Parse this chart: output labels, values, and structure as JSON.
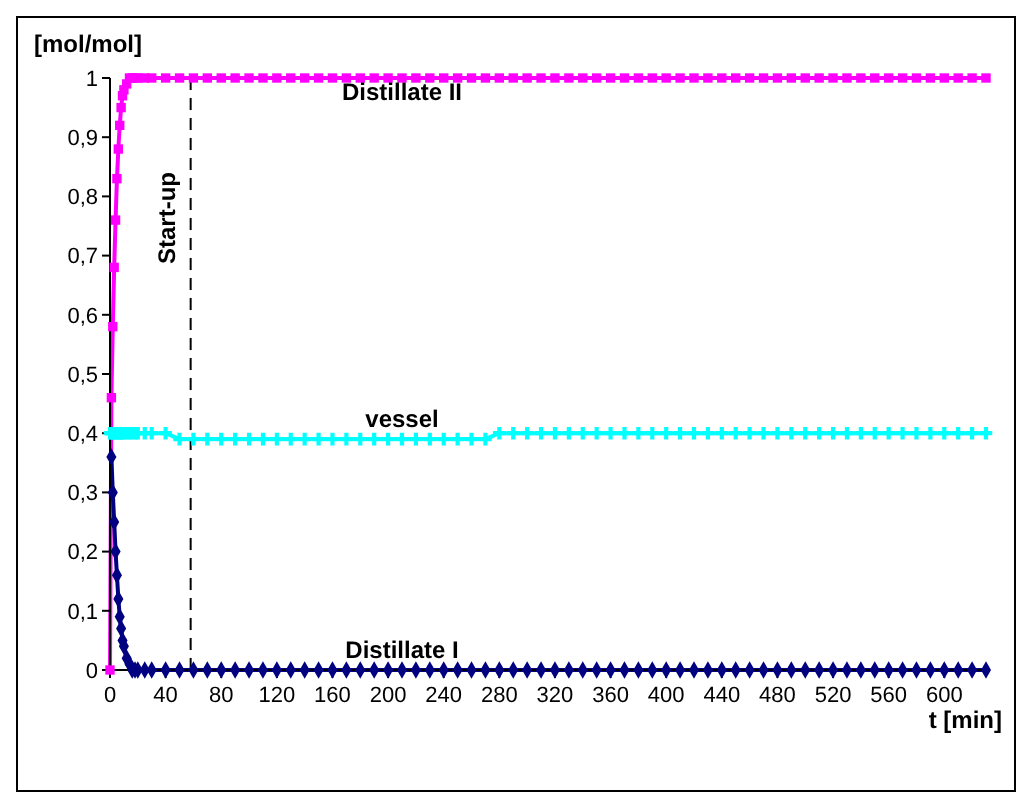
{
  "chart_data": {
    "type": "line",
    "xlabel": "t [min]",
    "ylabel": "[mol/mol]",
    "x": [
      0,
      1,
      2,
      3,
      4,
      5,
      6,
      7,
      8,
      9,
      10,
      12,
      14,
      16,
      18,
      20,
      25,
      30,
      40,
      50,
      60,
      70,
      80,
      90,
      100,
      110,
      120,
      130,
      140,
      150,
      160,
      170,
      180,
      190,
      200,
      210,
      220,
      230,
      240,
      250,
      260,
      270,
      280,
      290,
      300,
      310,
      320,
      330,
      340,
      350,
      360,
      370,
      380,
      390,
      400,
      410,
      420,
      430,
      440,
      450,
      460,
      470,
      480,
      490,
      500,
      510,
      520,
      530,
      540,
      550,
      560,
      570,
      580,
      590,
      600,
      610,
      620,
      630
    ],
    "series": [
      {
        "name": "Distillate II",
        "color": "#ff00ff",
        "marker": "square",
        "values": [
          0,
          0.46,
          0.58,
          0.68,
          0.76,
          0.83,
          0.88,
          0.92,
          0.95,
          0.97,
          0.98,
          0.99,
          1,
          1,
          1,
          1,
          1,
          1,
          1,
          1,
          1,
          1,
          1,
          1,
          1,
          1,
          1,
          1,
          1,
          1,
          1,
          1,
          1,
          1,
          1,
          1,
          1,
          1,
          1,
          1,
          1,
          1,
          1,
          1,
          1,
          1,
          1,
          1,
          1,
          1,
          1,
          1,
          1,
          1,
          1,
          1,
          1,
          1,
          1,
          1,
          1,
          1,
          1,
          1,
          1,
          1,
          1,
          1,
          1,
          1,
          1,
          1,
          1,
          1,
          1,
          1,
          1,
          1
        ]
      },
      {
        "name": "vessel",
        "color": "#00ffff",
        "marker": "cross",
        "values": [
          0.4,
          0.4,
          0.4,
          0.4,
          0.4,
          0.4,
          0.4,
          0.4,
          0.4,
          0.4,
          0.4,
          0.4,
          0.4,
          0.4,
          0.4,
          0.4,
          0.4,
          0.4,
          0.4,
          0.39,
          0.39,
          0.39,
          0.39,
          0.39,
          0.39,
          0.39,
          0.39,
          0.39,
          0.39,
          0.39,
          0.39,
          0.39,
          0.39,
          0.39,
          0.39,
          0.39,
          0.39,
          0.39,
          0.39,
          0.39,
          0.39,
          0.39,
          0.4,
          0.4,
          0.4,
          0.4,
          0.4,
          0.4,
          0.4,
          0.4,
          0.4,
          0.4,
          0.4,
          0.4,
          0.4,
          0.4,
          0.4,
          0.4,
          0.4,
          0.4,
          0.4,
          0.4,
          0.4,
          0.4,
          0.4,
          0.4,
          0.4,
          0.4,
          0.4,
          0.4,
          0.4,
          0.4,
          0.4,
          0.4,
          0.4,
          0.4,
          0.4,
          0.4
        ]
      },
      {
        "name": "Distillate I",
        "color": "#000080",
        "marker": "diamond",
        "values": [
          null,
          0.36,
          0.3,
          0.25,
          0.2,
          0.16,
          0.12,
          0.09,
          0.07,
          0.05,
          0.04,
          0.02,
          0.01,
          0,
          0,
          0,
          0,
          0,
          0,
          0,
          0,
          0,
          0,
          0,
          0,
          0,
          0,
          0,
          0,
          0,
          0,
          0,
          0,
          0,
          0,
          0,
          0,
          0,
          0,
          0,
          0,
          0,
          0,
          0,
          0,
          0,
          0,
          0,
          0,
          0,
          0,
          0,
          0,
          0,
          0,
          0,
          0,
          0,
          0,
          0,
          0,
          0,
          0,
          0,
          0,
          0,
          0,
          0,
          0,
          0,
          0,
          0,
          0,
          0,
          0,
          0,
          0,
          0
        ]
      }
    ],
    "xlim": [
      0,
      630
    ],
    "xticks": [
      0,
      40,
      80,
      120,
      160,
      200,
      240,
      280,
      320,
      360,
      400,
      440,
      480,
      520,
      560,
      600
    ],
    "ylim": [
      0,
      1
    ],
    "yticks": [
      0,
      {
        "value": 0.1,
        "label": "0,1"
      },
      {
        "value": 0.2,
        "label": "0,2"
      },
      {
        "value": 0.3,
        "label": "0,3"
      },
      {
        "value": 0.4,
        "label": "0,4"
      },
      {
        "value": 0.5,
        "label": "0,5"
      },
      {
        "value": 0.6,
        "label": "0,6"
      },
      {
        "value": 0.7,
        "label": "0,7"
      },
      {
        "value": 0.8,
        "label": "0,8"
      },
      {
        "value": 0.9,
        "label": "0,9"
      },
      1
    ],
    "ref_lines": [
      {
        "axis": "x",
        "value": 58,
        "label": "Start-up",
        "color": "#000000",
        "line_style": "dashed"
      }
    ],
    "grid": false,
    "legend": false
  }
}
